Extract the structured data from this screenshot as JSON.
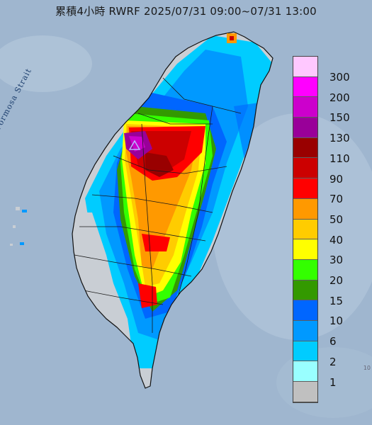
{
  "map": {
    "title": "累積4小時 RWRF 2025/07/31 09:00~07/31 13:00",
    "strait_label": "Formosa Strait",
    "corner_text": "10",
    "colors": {
      "sea": "#9fb6cf",
      "land": "#c9ced4"
    }
  },
  "legend": {
    "items": [
      {
        "label": "300",
        "color": "#ffc8ff"
      },
      {
        "label": "200",
        "color": "#ff00ff"
      },
      {
        "label": "150",
        "color": "#cc00cc"
      },
      {
        "label": "130",
        "color": "#990099"
      },
      {
        "label": "110",
        "color": "#990000"
      },
      {
        "label": "90",
        "color": "#cc0000"
      },
      {
        "label": "70",
        "color": "#ff0000"
      },
      {
        "label": "50",
        "color": "#ff9900"
      },
      {
        "label": "40",
        "color": "#ffcc00"
      },
      {
        "label": "30",
        "color": "#ffff00"
      },
      {
        "label": "20",
        "color": "#33ff00"
      },
      {
        "label": "15",
        "color": "#339900"
      },
      {
        "label": "10",
        "color": "#0066ff"
      },
      {
        "label": "6",
        "color": "#0099ff"
      },
      {
        "label": "2",
        "color": "#00ccff"
      },
      {
        "label": "1",
        "color": "#99ffff"
      },
      {
        "label": "",
        "color": "#c0c0c0"
      }
    ]
  }
}
